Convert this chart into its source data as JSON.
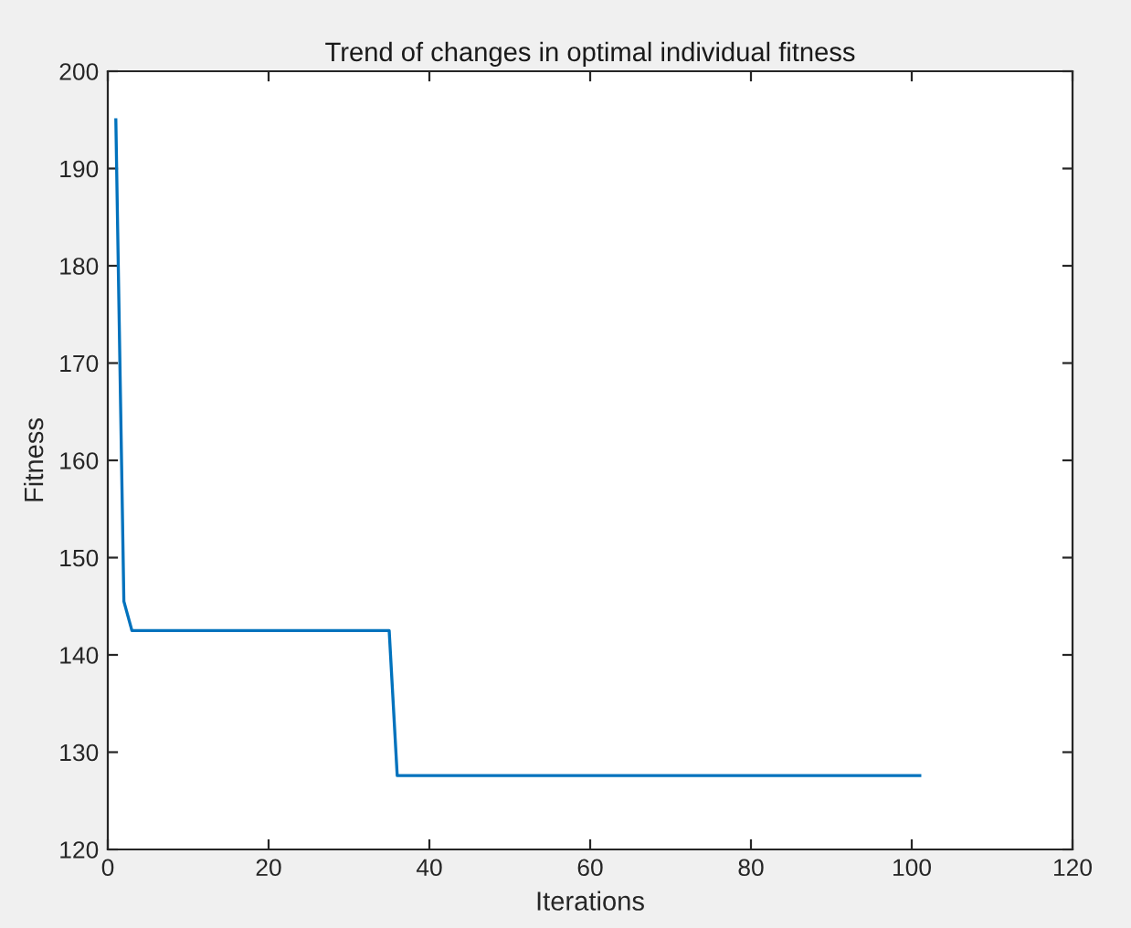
{
  "chart_data": {
    "type": "line",
    "title": "Trend of changes in optimal individual fitness",
    "xlabel": "Iterations",
    "ylabel": "Fitness",
    "series": [
      {
        "color": "#0072bd",
        "x": [
          1,
          2,
          3,
          35,
          36,
          101
        ],
        "values": [
          195,
          145.5,
          142.5,
          142.5,
          127.6,
          127.6
        ]
      }
    ],
    "xlim": [
      0,
      120
    ],
    "xticks": [
      0,
      20,
      40,
      60,
      80,
      100,
      120
    ],
    "ylim": [
      120,
      200
    ],
    "yticks": [
      120,
      130,
      140,
      150,
      160,
      170,
      180,
      190,
      200
    ],
    "grid": false,
    "marker": "none",
    "line_style": "solid"
  }
}
